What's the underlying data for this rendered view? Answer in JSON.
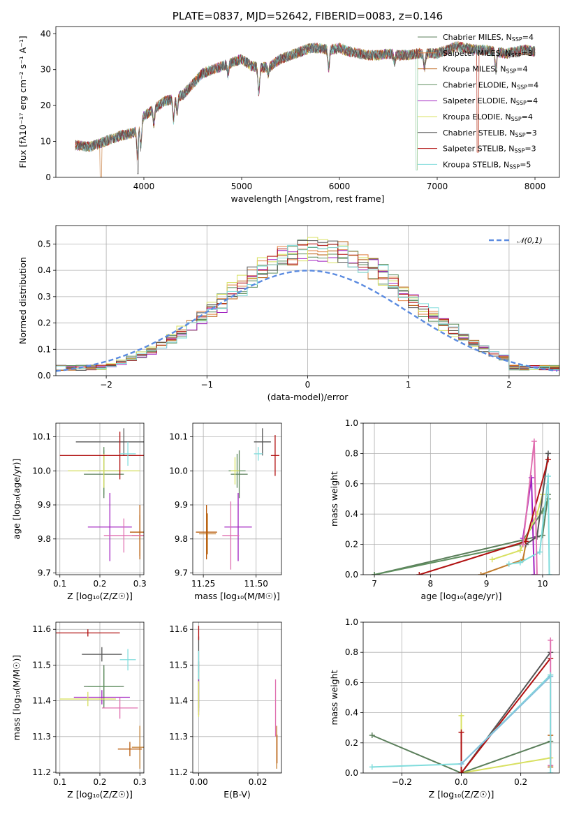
{
  "colors": [
    "#5b7f5b",
    "#c07a2a",
    "#b85a0a",
    "#5f8f5f",
    "#a020c0",
    "#d8e060",
    "#555555",
    "#b01010",
    "#80dcdc",
    "#e070b0",
    "#88c0dc",
    "#e08040",
    "#dd60aa",
    "#d8d840"
  ],
  "chart_data": [
    {
      "id": "spectrum",
      "type": "line",
      "title": "PLATE=0837, MJD=52642, FIBERID=0083, z=0.146",
      "xlabel": "wavelength [Angstrom, rest frame]",
      "ylabel": "Flux [fλ10⁻¹⁷ erg cm⁻² s⁻¹ A⁻¹]",
      "xlim": [
        3100,
        8250
      ],
      "ylim": [
        0,
        42
      ],
      "xticks": [
        4000,
        5000,
        6000,
        7000,
        8000
      ],
      "yticks": [
        0,
        10,
        20,
        30,
        40
      ],
      "legend": "top-right",
      "series": [
        {
          "name": "Chabrier MILES, N_SSP=4",
          "label": "Chabrier MILES, N",
          "sub": "SSP",
          "suffix": "=4"
        },
        {
          "name": "Salpeter MILES, N_SSP=3",
          "label": "Salpeter MILES, N",
          "sub": "SSP",
          "suffix": "=3"
        },
        {
          "name": "Kroupa MILES, N_SSP=4",
          "label": "Kroupa MILES, N",
          "sub": "SSP",
          "suffix": "=4"
        },
        {
          "name": "Chabrier ELODIE, N_SSP=4",
          "label": "Chabrier ELODIE, N",
          "sub": "SSP",
          "suffix": "=4"
        },
        {
          "name": "Salpeter ELODIE, N_SSP=4",
          "label": "Salpeter ELODIE, N",
          "sub": "SSP",
          "suffix": "=4"
        },
        {
          "name": "Kroupa ELODIE, N_SSP=4",
          "label": "Kroupa ELODIE, N",
          "sub": "SSP",
          "suffix": "=4"
        },
        {
          "name": "Chabrier STELIB, N_SSP=3",
          "label": "Chabrier STELIB, N",
          "sub": "SSP",
          "suffix": "=3"
        },
        {
          "name": "Salpeter STELIB, N_SSP=3",
          "label": "Salpeter STELIB, N",
          "sub": "SSP",
          "suffix": "=3"
        },
        {
          "name": "Kroupa STELIB, N_SSP=5",
          "label": "Kroupa STELIB, N",
          "sub": "SSP",
          "suffix": "=5"
        }
      ],
      "continuum": [
        [
          3300,
          9
        ],
        [
          3450,
          8.5
        ],
        [
          3600,
          10
        ],
        [
          3750,
          11.5
        ],
        [
          3900,
          12.5
        ],
        [
          4000,
          17
        ],
        [
          4100,
          19
        ],
        [
          4200,
          21
        ],
        [
          4300,
          22
        ],
        [
          4400,
          23
        ],
        [
          4500,
          26
        ],
        [
          4600,
          29
        ],
        [
          4700,
          30
        ],
        [
          4800,
          31
        ],
        [
          4900,
          32
        ],
        [
          5000,
          33
        ],
        [
          5100,
          31
        ],
        [
          5200,
          30.5
        ],
        [
          5300,
          31
        ],
        [
          5400,
          33
        ],
        [
          5500,
          34
        ],
        [
          5600,
          35
        ],
        [
          5700,
          36
        ],
        [
          5800,
          36
        ],
        [
          5900,
          35.5
        ],
        [
          6000,
          36
        ],
        [
          6100,
          35
        ],
        [
          6200,
          34.5
        ],
        [
          6300,
          34
        ],
        [
          6400,
          34
        ],
        [
          6500,
          34.5
        ],
        [
          6600,
          34
        ],
        [
          6700,
          34
        ],
        [
          6800,
          34.5
        ],
        [
          6900,
          34.5
        ],
        [
          7000,
          34.5
        ],
        [
          7100,
          35.5
        ],
        [
          7200,
          36.5
        ],
        [
          7300,
          36
        ],
        [
          7400,
          35.5
        ],
        [
          7500,
          35.5
        ],
        [
          7600,
          35
        ],
        [
          7700,
          34.5
        ],
        [
          7800,
          35
        ],
        [
          7900,
          35.5
        ],
        [
          8000,
          35
        ]
      ],
      "absorptions": [
        [
          3934,
          8
        ],
        [
          3968,
          7
        ],
        [
          4102,
          4
        ],
        [
          4304,
          6
        ],
        [
          4340,
          4
        ],
        [
          4861,
          3
        ],
        [
          5175,
          7
        ],
        [
          5270,
          2
        ],
        [
          5890,
          5
        ],
        [
          6563,
          2
        ],
        [
          6870,
          4
        ],
        [
          7600,
          5
        ]
      ],
      "drops": [
        [
          3560,
          0
        ],
        [
          3600,
          5
        ],
        [
          3630,
          8
        ],
        [
          3935,
          1
        ],
        [
          6790,
          2
        ],
        [
          6800,
          5
        ],
        [
          7410,
          7
        ],
        [
          7420,
          1
        ]
      ]
    },
    {
      "id": "residuals",
      "type": "histogram",
      "xlabel": "(data-model)/error",
      "ylabel": "Normed distribution",
      "xlim": [
        -2.5,
        2.5
      ],
      "ylim": [
        0,
        0.57
      ],
      "xticks": [
        -2,
        -1,
        0,
        1,
        2
      ],
      "yticks": [
        0.0,
        0.1,
        0.2,
        0.3,
        0.4,
        0.5
      ],
      "grid": true,
      "legend": "top-right",
      "reference": {
        "name": "𝒩(0,1)",
        "type": "gaussian",
        "mean": 0,
        "sigma": 1
      },
      "bin_width": 0.1,
      "n_series": 9
    },
    {
      "id": "age-vs-Z",
      "type": "errorbar",
      "xlabel": "Z [log₁₀(Z/Z☉)]",
      "ylabel": "age  [log₁₀(age/yr)]",
      "xlim": [
        0.09,
        0.31
      ],
      "ylim": [
        9.695,
        10.14
      ],
      "xticks": [
        0.1,
        0.2,
        0.3
      ],
      "yticks": [
        9.7,
        9.8,
        9.9,
        10.0,
        10.1
      ],
      "grid": true,
      "points": [
        {
          "x": 0.21,
          "y": 9.99,
          "xerr": 0.05,
          "yerr": 0.07,
          "c": 0
        },
        {
          "x": 0.3,
          "y": 9.81,
          "xerr": 0.02,
          "yerr": 0.06,
          "c": 1
        },
        {
          "x": 0.3,
          "y": 9.82,
          "xerr": 0.025,
          "yerr": 0.08,
          "c": 2
        },
        {
          "x": 0.21,
          "y": 10.0,
          "xerr": 0.04,
          "yerr": 0.07,
          "c": 3
        },
        {
          "x": 0.225,
          "y": 9.835,
          "xerr": 0.055,
          "yerr": 0.1,
          "c": 4
        },
        {
          "x": 0.21,
          "y": 10.0,
          "xerr": 0.09,
          "yerr": 0.05,
          "c": 5
        },
        {
          "x": 0.26,
          "y": 10.085,
          "xerr": 0.12,
          "yerr": 0.04,
          "c": 6
        },
        {
          "x": 0.25,
          "y": 10.045,
          "xerr": 0.15,
          "yerr": 0.07,
          "c": 7
        },
        {
          "x": 0.27,
          "y": 10.05,
          "xerr": 0.02,
          "yerr": 0.035,
          "c": 8
        },
        {
          "x": 0.26,
          "y": 9.81,
          "xerr": 0.05,
          "yerr": 0.05,
          "c": 9
        }
      ]
    },
    {
      "id": "age-vs-mass",
      "type": "errorbar",
      "xlabel": "mass [log₁₀(M/M☉)]",
      "ylabel": "",
      "xlim": [
        11.2,
        11.62
      ],
      "ylim": [
        9.695,
        10.14
      ],
      "xticks": [
        11.25,
        11.5
      ],
      "yticks": [
        9.7,
        9.8,
        9.9,
        10.0,
        10.1
      ],
      "grid": true,
      "points": [
        {
          "x": 11.42,
          "y": 9.99,
          "xerr": 0.04,
          "yerr": 0.07,
          "c": 0
        },
        {
          "x": 11.27,
          "y": 9.815,
          "xerr": 0.04,
          "yerr": 0.06,
          "c": 1
        },
        {
          "x": 11.265,
          "y": 9.82,
          "xerr": 0.05,
          "yerr": 0.08,
          "c": 2
        },
        {
          "x": 11.41,
          "y": 10.0,
          "xerr": 0.04,
          "yerr": 0.05,
          "c": 3
        },
        {
          "x": 11.415,
          "y": 9.835,
          "xerr": 0.065,
          "yerr": 0.1,
          "c": 4
        },
        {
          "x": 11.4,
          "y": 10.0,
          "xerr": 0.02,
          "yerr": 0.04,
          "c": 5
        },
        {
          "x": 11.53,
          "y": 10.085,
          "xerr": 0.04,
          "yerr": 0.04,
          "c": 6
        },
        {
          "x": 11.59,
          "y": 10.045,
          "xerr": 0.02,
          "yerr": 0.06,
          "c": 7
        },
        {
          "x": 11.51,
          "y": 10.05,
          "xerr": 0.02,
          "yerr": 0.02,
          "c": 8
        },
        {
          "x": 11.38,
          "y": 9.81,
          "xerr": 0.04,
          "yerr": 0.1,
          "c": 9
        }
      ]
    },
    {
      "id": "weight-vs-age",
      "type": "line",
      "xlabel": "age  [log₁₀(age/yr)]",
      "ylabel": "mass weight",
      "xlim": [
        6.8,
        10.3
      ],
      "ylim": [
        0,
        1
      ],
      "xticks": [
        7,
        8,
        9,
        10
      ],
      "yticks": [
        0.0,
        0.2,
        0.4,
        0.6,
        0.8,
        1.0
      ],
      "grid": true,
      "series": [
        {
          "c": 0,
          "x": [
            7.0,
            10.0,
            10.1
          ],
          "y": [
            0.0,
            0.26,
            0.53
          ]
        },
        {
          "c": 1,
          "x": [
            8.9,
            9.65,
            9.7
          ],
          "y": [
            0.0,
            0.1,
            0.2
          ]
        },
        {
          "c": 3,
          "x": [
            7.0,
            9.6,
            10.0,
            10.1
          ],
          "y": [
            0.0,
            0.2,
            0.42,
            0.5
          ]
        },
        {
          "c": 4,
          "x": [
            9.65,
            9.8,
            9.85
          ],
          "y": [
            0.24,
            0.64,
            0.0
          ]
        },
        {
          "c": 5,
          "x": [
            9.1,
            9.6,
            9.9,
            10.0
          ],
          "y": [
            0.1,
            0.16,
            0.4,
            0.53
          ]
        },
        {
          "c": 6,
          "x": [
            9.7,
            9.9,
            10.1
          ],
          "y": [
            0.2,
            0.25,
            0.8
          ]
        },
        {
          "c": 7,
          "x": [
            7.8,
            9.7,
            10.1
          ],
          "y": [
            0.0,
            0.22,
            0.76
          ]
        },
        {
          "c": 8,
          "x": [
            9.4,
            9.6,
            9.95,
            10.1,
            10.12
          ],
          "y": [
            0.07,
            0.08,
            0.15,
            0.65,
            0.0
          ]
        },
        {
          "c": 9,
          "x": [
            9.65,
            9.85,
            9.9
          ],
          "y": [
            0.2,
            0.88,
            0.0
          ]
        }
      ]
    },
    {
      "id": "mass-vs-Z",
      "type": "errorbar",
      "xlabel": "Z [log₁₀(Z/Z☉)]",
      "ylabel": "mass [log₁₀(M/M☉)]",
      "xlim": [
        0.09,
        0.31
      ],
      "ylim": [
        11.198,
        11.62
      ],
      "xticks": [
        0.1,
        0.2,
        0.3
      ],
      "yticks": [
        11.2,
        11.3,
        11.4,
        11.5,
        11.6
      ],
      "grid": true,
      "points": [
        {
          "x": 0.21,
          "y": 11.44,
          "xerr": 0.05,
          "yerr": 0.06,
          "c": 0
        },
        {
          "x": 0.3,
          "y": 11.27,
          "xerr": 0.02,
          "yerr": 0.06,
          "c": 1
        },
        {
          "x": 0.275,
          "y": 11.265,
          "xerr": 0.03,
          "yerr": 0.02,
          "c": 2
        },
        {
          "x": 0.21,
          "y": 11.44,
          "xerr": 0.04,
          "yerr": 0.05,
          "c": 3
        },
        {
          "x": 0.205,
          "y": 11.41,
          "xerr": 0.07,
          "yerr": 0.02,
          "c": 4
        },
        {
          "x": 0.17,
          "y": 11.405,
          "xerr": 0.07,
          "yerr": 0.02,
          "c": 5
        },
        {
          "x": 0.205,
          "y": 11.53,
          "xerr": 0.05,
          "yerr": 0.02,
          "c": 6
        },
        {
          "x": 0.17,
          "y": 11.59,
          "xerr": 0.08,
          "yerr": 0.01,
          "c": 7
        },
        {
          "x": 0.27,
          "y": 11.515,
          "xerr": 0.02,
          "yerr": 0.03,
          "c": 8
        },
        {
          "x": 0.25,
          "y": 11.38,
          "xerr": 0.045,
          "yerr": 0.03,
          "c": 9
        }
      ]
    },
    {
      "id": "mass-vs-ebv",
      "type": "errorbar",
      "xlabel": "E(B-V)",
      "ylabel": "",
      "xlim": [
        -0.002,
        0.028
      ],
      "ylim": [
        11.198,
        11.62
      ],
      "xticks": [
        0.0,
        0.02
      ],
      "yticks": [
        11.2,
        11.3,
        11.4,
        11.5,
        11.6
      ],
      "grid": true,
      "points": [
        {
          "x": 0.0,
          "y": 11.44,
          "xerr": 0.0,
          "yerr": 0.07,
          "c": 0
        },
        {
          "x": 0.0264,
          "y": 11.27,
          "xerr": 0.0,
          "yerr": 0.06,
          "c": 1
        },
        {
          "x": 0.0265,
          "y": 11.265,
          "xerr": 0.0,
          "yerr": 0.04,
          "c": 2
        },
        {
          "x": 0.0,
          "y": 11.43,
          "xerr": 0.0,
          "yerr": 0.05,
          "c": 3
        },
        {
          "x": 0.0,
          "y": 11.41,
          "xerr": 0.0,
          "yerr": 0.05,
          "c": 4
        },
        {
          "x": 0.0,
          "y": 11.405,
          "xerr": 0.0,
          "yerr": 0.05,
          "c": 5
        },
        {
          "x": 0.0,
          "y": 11.53,
          "xerr": 0.0,
          "yerr": 0.05,
          "c": 6
        },
        {
          "x": 0.0,
          "y": 11.59,
          "xerr": 0.0,
          "yerr": 0.02,
          "c": 7
        },
        {
          "x": 0.0,
          "y": 11.5,
          "xerr": 0.0,
          "yerr": 0.04,
          "c": 8
        },
        {
          "x": 0.026,
          "y": 11.38,
          "xerr": 0.0,
          "yerr": 0.08,
          "c": 9
        }
      ]
    },
    {
      "id": "weight-vs-Z",
      "type": "line",
      "xlabel": "Z [log₁₀(Z/Z☉)]",
      "ylabel": "mass weight",
      "xlim": [
        -0.33,
        0.33
      ],
      "ylim": [
        0,
        1
      ],
      "xticks": [
        -0.2,
        0.0,
        0.2
      ],
      "yticks": [
        0.0,
        0.2,
        0.4,
        0.6,
        0.8,
        1.0
      ],
      "grid": true,
      "series": [
        {
          "c": 0,
          "x": [
            -0.3,
            0.0,
            0.3
          ],
          "y": [
            0.25,
            0.0,
            0.21
          ]
        },
        {
          "c": 5,
          "x": [
            0.0,
            0.3
          ],
          "y": [
            0.0,
            0.1
          ]
        },
        {
          "c": 5,
          "x": [
            0.0,
            0.0
          ],
          "y": [
            0.0,
            0.38
          ]
        },
        {
          "c": 6,
          "x": [
            0.0,
            0.3
          ],
          "y": [
            0.0,
            0.8
          ]
        },
        {
          "c": 7,
          "x": [
            0.0,
            0.3
          ],
          "y": [
            0.0,
            0.76
          ]
        },
        {
          "c": 7,
          "x": [
            0.0,
            0.0
          ],
          "y": [
            0.0,
            0.27
          ]
        },
        {
          "c": 8,
          "x": [
            -0.3,
            0.0,
            0.3
          ],
          "y": [
            0.04,
            0.06,
            0.65
          ]
        },
        {
          "c": 10,
          "x": [
            0.0,
            0.3
          ],
          "y": [
            0.06,
            0.64
          ]
        },
        {
          "c": 9,
          "x": [
            0.3,
            0.3
          ],
          "y": [
            0.05,
            0.88
          ]
        },
        {
          "c": 2,
          "x": [
            0.3,
            0.3
          ],
          "y": [
            0.04,
            0.25
          ]
        },
        {
          "c": 8,
          "x": [
            0.3,
            0.3
          ],
          "y": [
            0.0,
            0.65
          ]
        }
      ]
    }
  ]
}
